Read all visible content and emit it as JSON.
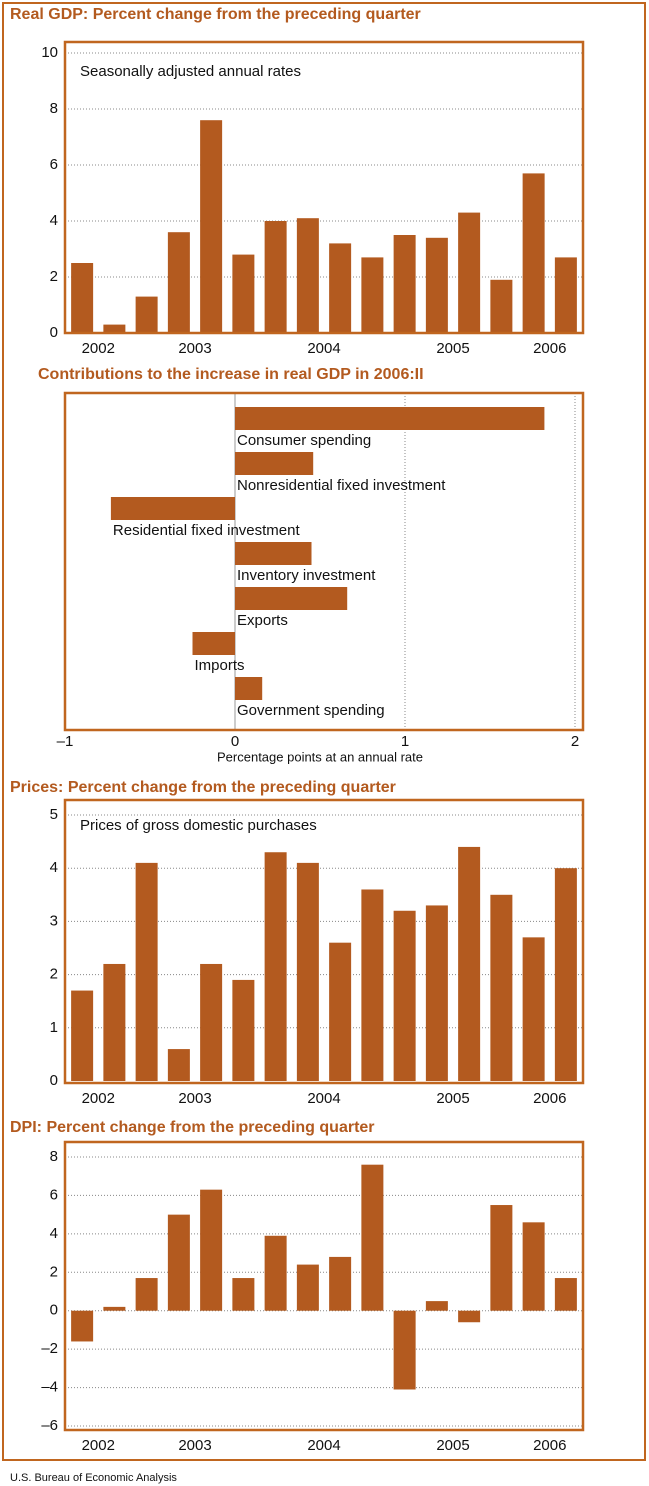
{
  "chart_data": [
    {
      "type": "bar",
      "title": "Real GDP: Percent change from the preceding quarter",
      "subtitle": "Seasonally adjusted annual rates",
      "categories": [
        "2002",
        null,
        null,
        "2003",
        null,
        null,
        null,
        "2004",
        null,
        null,
        null,
        "2005",
        null,
        null,
        "2006",
        null
      ],
      "values": [
        2.5,
        0.3,
        1.3,
        3.6,
        7.6,
        2.8,
        4.0,
        4.1,
        3.2,
        2.7,
        3.5,
        3.4,
        4.3,
        1.9,
        5.7,
        2.7
      ],
      "color": "#b35a1f",
      "ylim": [
        0,
        10
      ],
      "yticks": [
        0,
        2,
        4,
        6,
        8,
        10
      ],
      "grid": true
    },
    {
      "type": "hbar",
      "title": "Contributions to the increase in real GDP in 2006:II",
      "categories": [
        "Consumer spending",
        "Nonresidential fixed investment",
        "Residential fixed investment",
        "Inventory investment",
        "Exports",
        "Imports",
        "Government spending"
      ],
      "values": [
        1.82,
        0.46,
        -0.73,
        0.45,
        0.66,
        -0.25,
        0.16
      ],
      "color": "#b35a1f",
      "xlim": [
        -1,
        2
      ],
      "xticks": [
        {
          "value": -1,
          "label": "–1"
        },
        0,
        1,
        2
      ],
      "x_label": "Percentage points at an annual rate",
      "grid": true
    },
    {
      "type": "bar",
      "title": "Prices: Percent change from the preceding quarter",
      "subtitle": "Prices of gross domestic purchases",
      "categories": [
        "2002",
        null,
        null,
        "2003",
        null,
        null,
        null,
        "2004",
        null,
        null,
        null,
        "2005",
        null,
        null,
        "2006",
        null
      ],
      "values": [
        1.7,
        2.2,
        4.1,
        0.6,
        2.2,
        1.9,
        4.3,
        4.1,
        2.6,
        3.6,
        3.2,
        3.3,
        4.4,
        3.5,
        2.7,
        4.0
      ],
      "color": "#b35a1f",
      "ylim": [
        0,
        5
      ],
      "yticks": [
        0,
        1,
        2,
        3,
        4,
        5
      ],
      "grid": true
    },
    {
      "type": "bar",
      "title": "DPI: Percent change from the preceding quarter",
      "categories": [
        "2002",
        null,
        null,
        "2003",
        null,
        null,
        null,
        "2004",
        null,
        null,
        null,
        "2005",
        null,
        null,
        "2006",
        null
      ],
      "values": [
        -1.6,
        0.2,
        1.7,
        5.0,
        6.3,
        1.7,
        3.9,
        2.4,
        2.8,
        7.6,
        -4.1,
        0.5,
        -0.6,
        5.5,
        4.6,
        1.7
      ],
      "color": "#b35a1f",
      "ylim": [
        -6,
        8
      ],
      "yticks": [
        {
          "value": -6,
          "label": "–6"
        },
        {
          "value": -4,
          "label": "–4"
        },
        {
          "value": -2,
          "label": "–2"
        },
        0,
        2,
        4,
        6,
        8
      ],
      "grid": true
    }
  ],
  "footer": "U.S. Bureau of Economic Analysis"
}
